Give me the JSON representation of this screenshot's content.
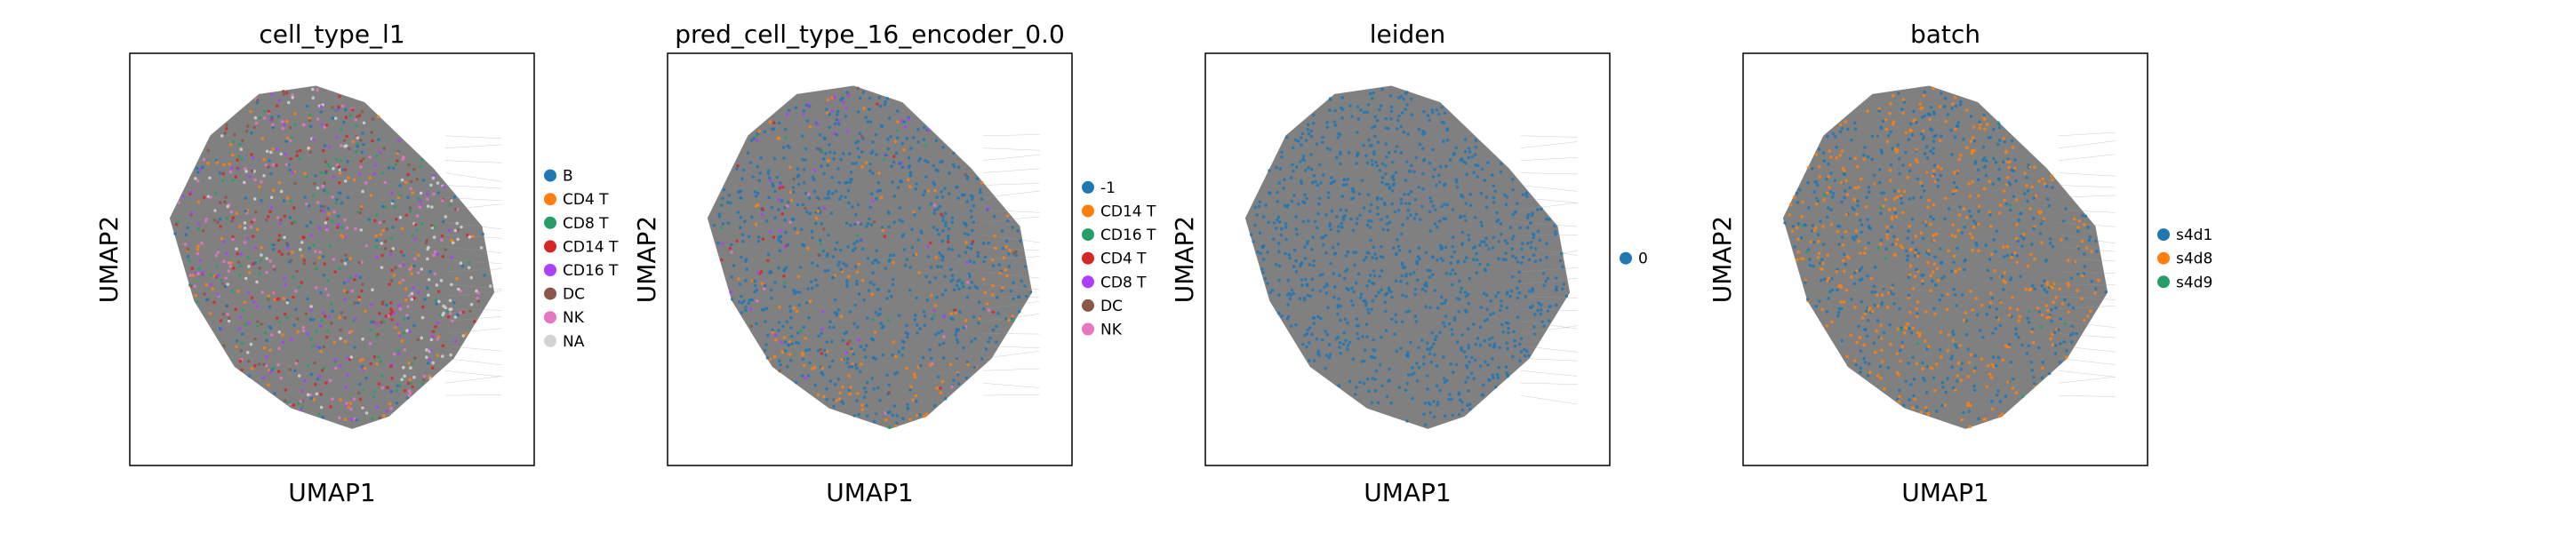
{
  "figure": {
    "background": "#ffffff",
    "edge_color": "#808080"
  },
  "chart_data": [
    {
      "type": "scatter",
      "title": "cell_type_l1",
      "xlabel": "UMAP1",
      "ylabel": "UMAP2",
      "show_ticks": false,
      "grid": false,
      "legend_position": "right",
      "base_color": "#808080",
      "series": [
        {
          "name": "B",
          "color": "#1f77b4"
        },
        {
          "name": "CD4 T",
          "color": "#ff7f0e"
        },
        {
          "name": "CD8 T",
          "color": "#279e68"
        },
        {
          "name": "CD14 T",
          "color": "#d62728"
        },
        {
          "name": "CD16 T",
          "color": "#aa40fc"
        },
        {
          "name": "DC",
          "color": "#8c564b"
        },
        {
          "name": "NK",
          "color": "#e377c2"
        },
        {
          "name": "NA",
          "color": "#d3d3d3"
        }
      ]
    },
    {
      "type": "scatter",
      "title": "pred_cell_type_16_encoder_0.0",
      "xlabel": "UMAP1",
      "ylabel": "UMAP2",
      "show_ticks": false,
      "grid": false,
      "legend_position": "right",
      "base_color": "#808080",
      "series": [
        {
          "name": "-1",
          "color": "#1f77b4"
        },
        {
          "name": "CD14 T",
          "color": "#ff7f0e"
        },
        {
          "name": "CD16 T",
          "color": "#279e68"
        },
        {
          "name": "CD4 T",
          "color": "#d62728"
        },
        {
          "name": "CD8 T",
          "color": "#aa40fc"
        },
        {
          "name": "DC",
          "color": "#8c564b"
        },
        {
          "name": "NK",
          "color": "#e377c2"
        }
      ]
    },
    {
      "type": "scatter",
      "title": "leiden",
      "xlabel": "UMAP1",
      "ylabel": "UMAP2",
      "show_ticks": false,
      "grid": false,
      "legend_position": "right",
      "base_color": "#808080",
      "series": [
        {
          "name": "0",
          "color": "#1f77b4"
        }
      ]
    },
    {
      "type": "scatter",
      "title": "batch",
      "xlabel": "UMAP1",
      "ylabel": "UMAP2",
      "show_ticks": false,
      "grid": false,
      "legend_position": "right",
      "base_color": "#808080",
      "series": [
        {
          "name": "s4d1",
          "color": "#1f77b4"
        },
        {
          "name": "s4d8",
          "color": "#ff7f0e"
        },
        {
          "name": "s4d9",
          "color": "#279e68"
        }
      ]
    }
  ]
}
